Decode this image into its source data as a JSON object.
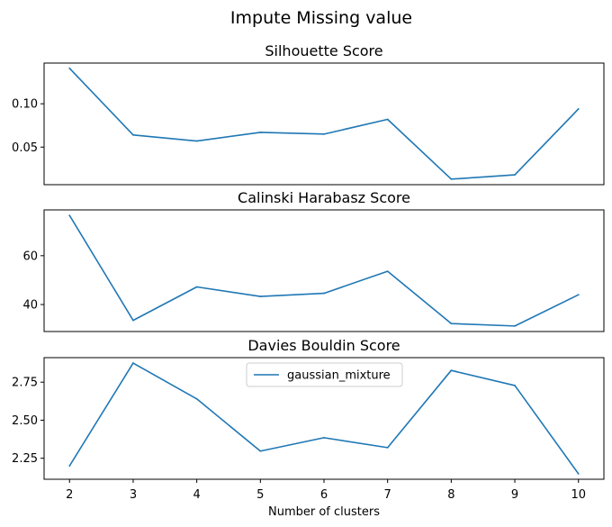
{
  "figure": {
    "suptitle": "Impute Missing value",
    "xlabel": "Number of clusters",
    "xticks": [
      "2",
      "3",
      "4",
      "5",
      "6",
      "7",
      "8",
      "9",
      "10"
    ]
  },
  "chart_data": [
    {
      "type": "line",
      "title": "Silhouette Score",
      "xlabel": "",
      "ylabel": "",
      "x": [
        2,
        3,
        4,
        5,
        6,
        7,
        8,
        9,
        10
      ],
      "series": [
        {
          "values": [
            0.141,
            0.064,
            0.057,
            0.067,
            0.065,
            0.082,
            0.013,
            0.018,
            0.094
          ],
          "color": "#1f77b4"
        }
      ],
      "xlim": [
        1.6,
        10.4
      ],
      "ylim": [
        0.0066,
        0.147
      ],
      "yticks": [
        0.05,
        0.1
      ],
      "ytick_labels": [
        "0.05",
        "0.10"
      ],
      "show_xticks": false,
      "grid": false
    },
    {
      "type": "line",
      "title": "Calinski Harabasz Score",
      "xlabel": "",
      "ylabel": "",
      "x": [
        2,
        3,
        4,
        5,
        6,
        7,
        8,
        9,
        10
      ],
      "series": [
        {
          "values": [
            76.5,
            33.5,
            47.2,
            43.3,
            44.6,
            53.6,
            32.2,
            31.2,
            44.0
          ],
          "color": "#1f77b4"
        }
      ],
      "xlim": [
        1.6,
        10.4
      ],
      "ylim": [
        28.94,
        78.76
      ],
      "yticks": [
        40,
        60
      ],
      "ytick_labels": [
        "40",
        "60"
      ],
      "show_xticks": false,
      "grid": false
    },
    {
      "type": "line",
      "title": "Davies Bouldin Score",
      "xlabel": "Number of clusters",
      "ylabel": "",
      "x": [
        2,
        3,
        4,
        5,
        6,
        7,
        8,
        9,
        10
      ],
      "series": [
        {
          "name": "gaussian_mixture",
          "values": [
            2.2,
            2.875,
            2.64,
            2.297,
            2.385,
            2.32,
            2.827,
            2.728,
            2.148
          ],
          "color": "#1f77b4"
        }
      ],
      "xlim": [
        1.6,
        10.4
      ],
      "ylim": [
        2.112,
        2.911
      ],
      "yticks": [
        2.25,
        2.5,
        2.75
      ],
      "ytick_labels": [
        "2.25",
        "2.50",
        "2.75"
      ],
      "show_xticks": true,
      "legend": "upper center",
      "grid": false
    }
  ]
}
